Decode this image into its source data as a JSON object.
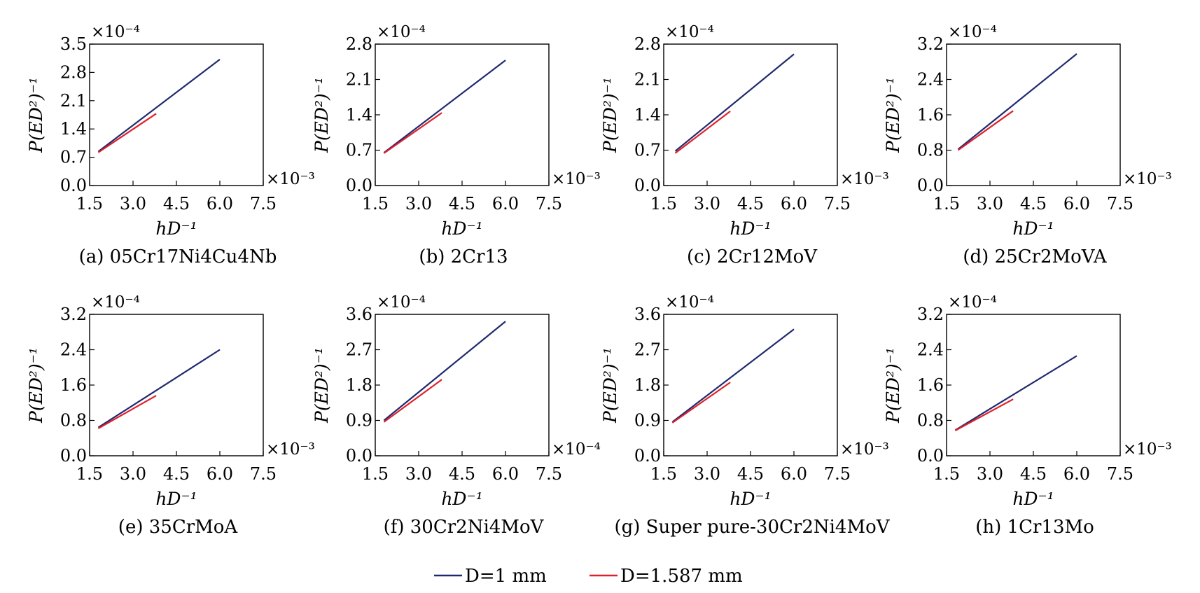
{
  "legend": [
    {
      "label": "D=1 mm",
      "color": "#1f2a6e"
    },
    {
      "label": "D=1.587 mm",
      "color": "#e0202a"
    }
  ],
  "chart_data": [
    {
      "type": "line",
      "caption": "(a) 05Cr17Ni4Cu4Nb",
      "xlabel": "hD⁻¹",
      "ylabel": "P(ED²)⁻¹",
      "x_multiplier": "×10⁻³",
      "y_multiplier": "×10⁻⁴",
      "xlim": [
        1.5,
        7.5
      ],
      "xticks": [
        "1.5",
        "3.0",
        "4.5",
        "6.0",
        "7.5"
      ],
      "ylim": [
        0,
        3.5
      ],
      "yticks": [
        "0.0",
        "0.7",
        "1.4",
        "2.1",
        "2.8",
        "3.5"
      ],
      "series": [
        {
          "name": "D=1 mm",
          "x": [
            1.8,
            6.0
          ],
          "y": [
            0.84,
            3.12
          ]
        },
        {
          "name": "D=1.587 mm",
          "x": [
            1.8,
            3.8
          ],
          "y": [
            0.82,
            1.78
          ]
        }
      ]
    },
    {
      "type": "line",
      "caption": "(b) 2Cr13",
      "xlabel": "hD⁻¹",
      "ylabel": "P(ED²)⁻¹",
      "x_multiplier": "×10⁻³",
      "y_multiplier": "×10⁻⁴",
      "xlim": [
        1.5,
        7.5
      ],
      "xticks": [
        "1.5",
        "3.0",
        "4.5",
        "6.0",
        "7.5"
      ],
      "ylim": [
        0,
        2.8
      ],
      "yticks": [
        "0.0",
        "0.7",
        "1.4",
        "2.1",
        "2.8"
      ],
      "series": [
        {
          "name": "D=1 mm",
          "x": [
            1.8,
            6.0
          ],
          "y": [
            0.65,
            2.48
          ]
        },
        {
          "name": "D=1.587 mm",
          "x": [
            1.8,
            3.8
          ],
          "y": [
            0.64,
            1.44
          ]
        }
      ]
    },
    {
      "type": "line",
      "caption": "(c) 2Cr12MoV",
      "xlabel": "hD⁻¹",
      "ylabel": "P(ED²)⁻¹",
      "x_multiplier": "×10⁻³",
      "y_multiplier": "×10⁻⁴",
      "xlim": [
        1.5,
        7.5
      ],
      "xticks": [
        "1.5",
        "3.0",
        "4.5",
        "6.0",
        "7.5"
      ],
      "ylim": [
        0,
        2.8
      ],
      "yticks": [
        "0.0",
        "0.7",
        "1.4",
        "2.1",
        "2.8"
      ],
      "series": [
        {
          "name": "D=1 mm",
          "x": [
            1.9,
            6.0
          ],
          "y": [
            0.68,
            2.6
          ]
        },
        {
          "name": "D=1.587 mm",
          "x": [
            1.9,
            3.8
          ],
          "y": [
            0.64,
            1.47
          ]
        }
      ]
    },
    {
      "type": "line",
      "caption": "(d) 25Cr2MoVA",
      "xlabel": "hD⁻¹",
      "ylabel": "P(ED²)⁻¹",
      "x_multiplier": "×10⁻³",
      "y_multiplier": "×10⁻⁴",
      "xlim": [
        1.5,
        7.5
      ],
      "xticks": [
        "1.5",
        "3.0",
        "4.5",
        "6.0",
        "7.5"
      ],
      "ylim": [
        0,
        3.2
      ],
      "yticks": [
        "0.0",
        "0.8",
        "1.6",
        "2.4",
        "3.2"
      ],
      "series": [
        {
          "name": "D=1 mm",
          "x": [
            1.9,
            6.0
          ],
          "y": [
            0.82,
            2.98
          ]
        },
        {
          "name": "D=1.587 mm",
          "x": [
            1.9,
            3.8
          ],
          "y": [
            0.8,
            1.69
          ]
        }
      ]
    },
    {
      "type": "line",
      "caption": "(e) 35CrMoA",
      "xlabel": "hD⁻¹",
      "ylabel": "P(ED²)⁻¹",
      "x_multiplier": "×10⁻³",
      "y_multiplier": "×10⁻⁴",
      "xlim": [
        1.5,
        7.5
      ],
      "xticks": [
        "1.5",
        "3.0",
        "4.5",
        "6.0",
        "7.5"
      ],
      "ylim": [
        0,
        3.2
      ],
      "yticks": [
        "0.0",
        "0.8",
        "1.6",
        "2.4",
        "3.2"
      ],
      "series": [
        {
          "name": "D=1 mm",
          "x": [
            1.8,
            6.0
          ],
          "y": [
            0.64,
            2.4
          ]
        },
        {
          "name": "D=1.587 mm",
          "x": [
            1.8,
            3.8
          ],
          "y": [
            0.62,
            1.36
          ]
        }
      ]
    },
    {
      "type": "line",
      "caption": "(f) 30Cr2Ni4MoV",
      "xlabel": "hD⁻¹",
      "ylabel": "P(ED²)⁻¹",
      "x_multiplier": "×10⁻⁴",
      "y_multiplier": "×10⁻⁴",
      "xlim": [
        1.5,
        7.5
      ],
      "xticks": [
        "1.5",
        "3.0",
        "4.5",
        "6.0",
        "7.5"
      ],
      "ylim": [
        0,
        3.6
      ],
      "yticks": [
        "0.0",
        "0.9",
        "1.8",
        "2.7",
        "3.6"
      ],
      "series": [
        {
          "name": "D=1 mm",
          "x": [
            1.8,
            6.0
          ],
          "y": [
            0.9,
            3.42
          ]
        },
        {
          "name": "D=1.587 mm",
          "x": [
            1.8,
            3.8
          ],
          "y": [
            0.86,
            1.94
          ]
        }
      ]
    },
    {
      "type": "line",
      "caption": "(g) Super pure-30Cr2Ni4MoV",
      "xlabel": "hD⁻¹",
      "ylabel": "P(ED²)⁻¹",
      "x_multiplier": "×10⁻³",
      "y_multiplier": "×10⁻⁴",
      "xlim": [
        1.5,
        7.5
      ],
      "xticks": [
        "1.5",
        "3.0",
        "4.5",
        "6.0",
        "7.5"
      ],
      "ylim": [
        0,
        3.6
      ],
      "yticks": [
        "0.0",
        "0.9",
        "1.8",
        "2.7",
        "3.6"
      ],
      "series": [
        {
          "name": "D=1 mm",
          "x": [
            1.8,
            6.0
          ],
          "y": [
            0.86,
            3.22
          ]
        },
        {
          "name": "D=1.587 mm",
          "x": [
            1.8,
            3.8
          ],
          "y": [
            0.84,
            1.87
          ]
        }
      ]
    },
    {
      "type": "line",
      "caption": "(h) 1Cr13Mo",
      "xlabel": "hD⁻¹",
      "ylabel": "P(ED²)⁻¹",
      "x_multiplier": "×10⁻³",
      "y_multiplier": "×10⁻⁴",
      "xlim": [
        1.5,
        7.5
      ],
      "xticks": [
        "1.5",
        "3.0",
        "4.5",
        "6.0",
        "7.5"
      ],
      "ylim": [
        0,
        3.2
      ],
      "yticks": [
        "0.0",
        "0.8",
        "1.6",
        "2.4",
        "3.2"
      ],
      "series": [
        {
          "name": "D=1 mm",
          "x": [
            1.8,
            6.0
          ],
          "y": [
            0.58,
            2.26
          ]
        },
        {
          "name": "D=1.587 mm",
          "x": [
            1.8,
            3.8
          ],
          "y": [
            0.57,
            1.28
          ]
        }
      ]
    }
  ]
}
